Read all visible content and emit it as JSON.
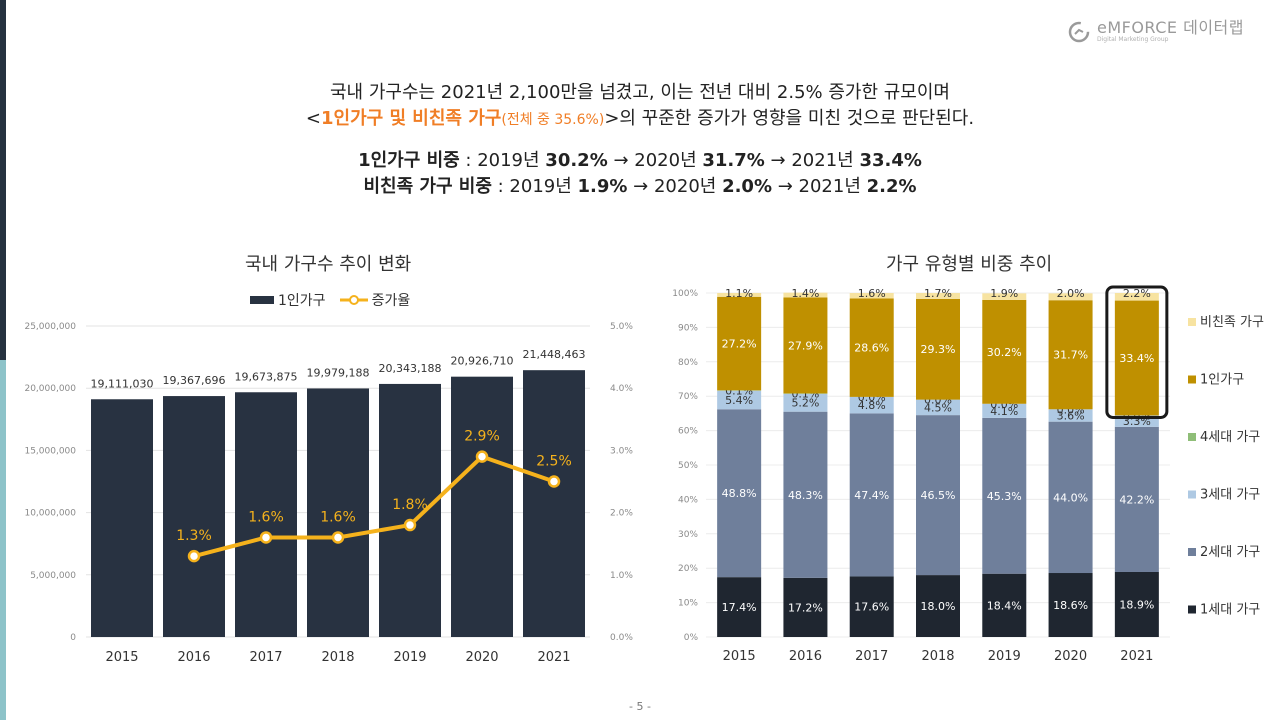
{
  "logo": {
    "brand": "eMFORCE 데이터랩",
    "tagline": "Digital Marketing Group"
  },
  "headline": {
    "line1": "국내 가구수는 2021년 2,100만을 넘겼고, 이는 전년 대비 2.5% 증가한 규모이며",
    "line2_prefix": "<",
    "line2_highlight": "1인가구 및 비친족 가구",
    "line2_small": "(전체 중 35.6%)",
    "line2_suffix": ">의 꾸준한 증가가 영향을 미친 것으로 판단된다."
  },
  "stats": {
    "single": {
      "label": "1인가구 비중",
      "sep": " : ",
      "y1": "2019년 ",
      "v1": "30.2%",
      "arrow1": " → ",
      "y2": "2020년 ",
      "v2": "31.7%",
      "arrow2": " → ",
      "y3": "2021년 ",
      "v3": "33.4%"
    },
    "nonfamily": {
      "label": "비친족 가구 비중",
      "sep": " : ",
      "y1": "2019년 ",
      "v1": "1.9%",
      "arrow1": " → ",
      "y2": "2020년 ",
      "v2": "2.0%",
      "arrow2": " → ",
      "y3": "2021년 ",
      "v3": "2.2%"
    }
  },
  "page_number": "- 5 -",
  "colors": {
    "bar_dark": "#283241",
    "line_yellow": "#f5b21c",
    "gen1": "#1f2630",
    "gen2": "#6f7f9b",
    "gen3": "#aec9e3",
    "gen4": "#8fbe78",
    "single": "#bf9000",
    "nonfamily": "#f7e3a1",
    "accent_orange": "#f07e26"
  },
  "chart_data": [
    {
      "type": "bar",
      "title": "국내 가구수 추이 변화",
      "categories": [
        "2015",
        "2016",
        "2017",
        "2018",
        "2019",
        "2020",
        "2021"
      ],
      "series": [
        {
          "name": "1인가구",
          "axis": "left",
          "values": [
            19111030,
            19367696,
            19673875,
            19979188,
            20343188,
            20926710,
            21448463
          ],
          "labels": [
            "19,111,030",
            "19,367,696",
            "19,673,875",
            "19,979,188",
            "20,343,188",
            "20,926,710",
            "21,448,463"
          ]
        },
        {
          "name": "증가율",
          "type": "line",
          "axis": "right",
          "values": [
            null,
            1.3,
            1.6,
            1.6,
            1.8,
            2.9,
            2.5
          ],
          "labels": [
            "",
            "1.3%",
            "1.6%",
            "1.6%",
            "1.8%",
            "2.9%",
            "2.5%"
          ]
        }
      ],
      "ylim": [
        0,
        25000000
      ],
      "yticks": [
        "0",
        "5,000,000",
        "10,000,000",
        "15,000,000",
        "20,000,000",
        "25,000,000"
      ],
      "y2lim": [
        0,
        5
      ],
      "y2ticks": [
        "0.0%",
        "1.0%",
        "2.0%",
        "3.0%",
        "4.0%",
        "5.0%"
      ],
      "legend": "top-center",
      "grid": true
    },
    {
      "type": "bar",
      "stacked": true,
      "title": "가구 유형별 비중 추이",
      "categories": [
        "2015",
        "2016",
        "2017",
        "2018",
        "2019",
        "2020",
        "2021"
      ],
      "series": [
        {
          "name": "1세대 가구",
          "values": [
            17.4,
            17.2,
            17.6,
            18.0,
            18.4,
            18.6,
            18.9
          ],
          "labels": [
            "17.4%",
            "17.2%",
            "17.6%",
            "18.0%",
            "18.4%",
            "18.6%",
            "18.9%"
          ]
        },
        {
          "name": "2세대 가구",
          "values": [
            48.8,
            48.3,
            47.4,
            46.5,
            45.3,
            44.0,
            42.2
          ],
          "labels": [
            "48.8%",
            "48.3%",
            "47.4%",
            "46.5%",
            "45.3%",
            "44.0%",
            "42.2%"
          ]
        },
        {
          "name": "3세대 가구",
          "values": [
            5.4,
            5.2,
            4.8,
            4.5,
            4.1,
            3.6,
            3.3
          ],
          "labels": [
            "5.4%",
            "5.2%",
            "4.8%",
            "4.5%",
            "4.1%",
            "3.6%",
            "3.3%"
          ]
        },
        {
          "name": "4세대 가구",
          "values": [
            0.1,
            0.1,
            0.0,
            0.0,
            0.0,
            0.0,
            0.0
          ],
          "labels": [
            "0.1%",
            "0.1%",
            "0.0%",
            "0.0%",
            "0.0%",
            "0.0%",
            "0.0%"
          ]
        },
        {
          "name": "1인가구",
          "values": [
            27.2,
            27.9,
            28.6,
            29.3,
            30.2,
            31.7,
            33.4
          ],
          "labels": [
            "27.2%",
            "27.9%",
            "28.6%",
            "29.3%",
            "30.2%",
            "31.7%",
            "33.4%"
          ]
        },
        {
          "name": "비친족 가구",
          "values": [
            1.1,
            1.4,
            1.6,
            1.7,
            1.9,
            2.0,
            2.2
          ],
          "labels": [
            "1.1%",
            "1.4%",
            "1.6%",
            "1.7%",
            "1.9%",
            "2.0%",
            "2.2%"
          ]
        }
      ],
      "legend_order": [
        "비친족 가구",
        "1인가구",
        "4세대 가구",
        "3세대 가구",
        "2세대 가구",
        "1세대 가구"
      ],
      "ylim": [
        0,
        100
      ],
      "yticks": [
        "0%",
        "10%",
        "20%",
        "30%",
        "40%",
        "50%",
        "60%",
        "70%",
        "80%",
        "90%",
        "100%"
      ],
      "highlight": {
        "category": "2021",
        "series": "1인가구"
      },
      "legend": "right"
    }
  ]
}
